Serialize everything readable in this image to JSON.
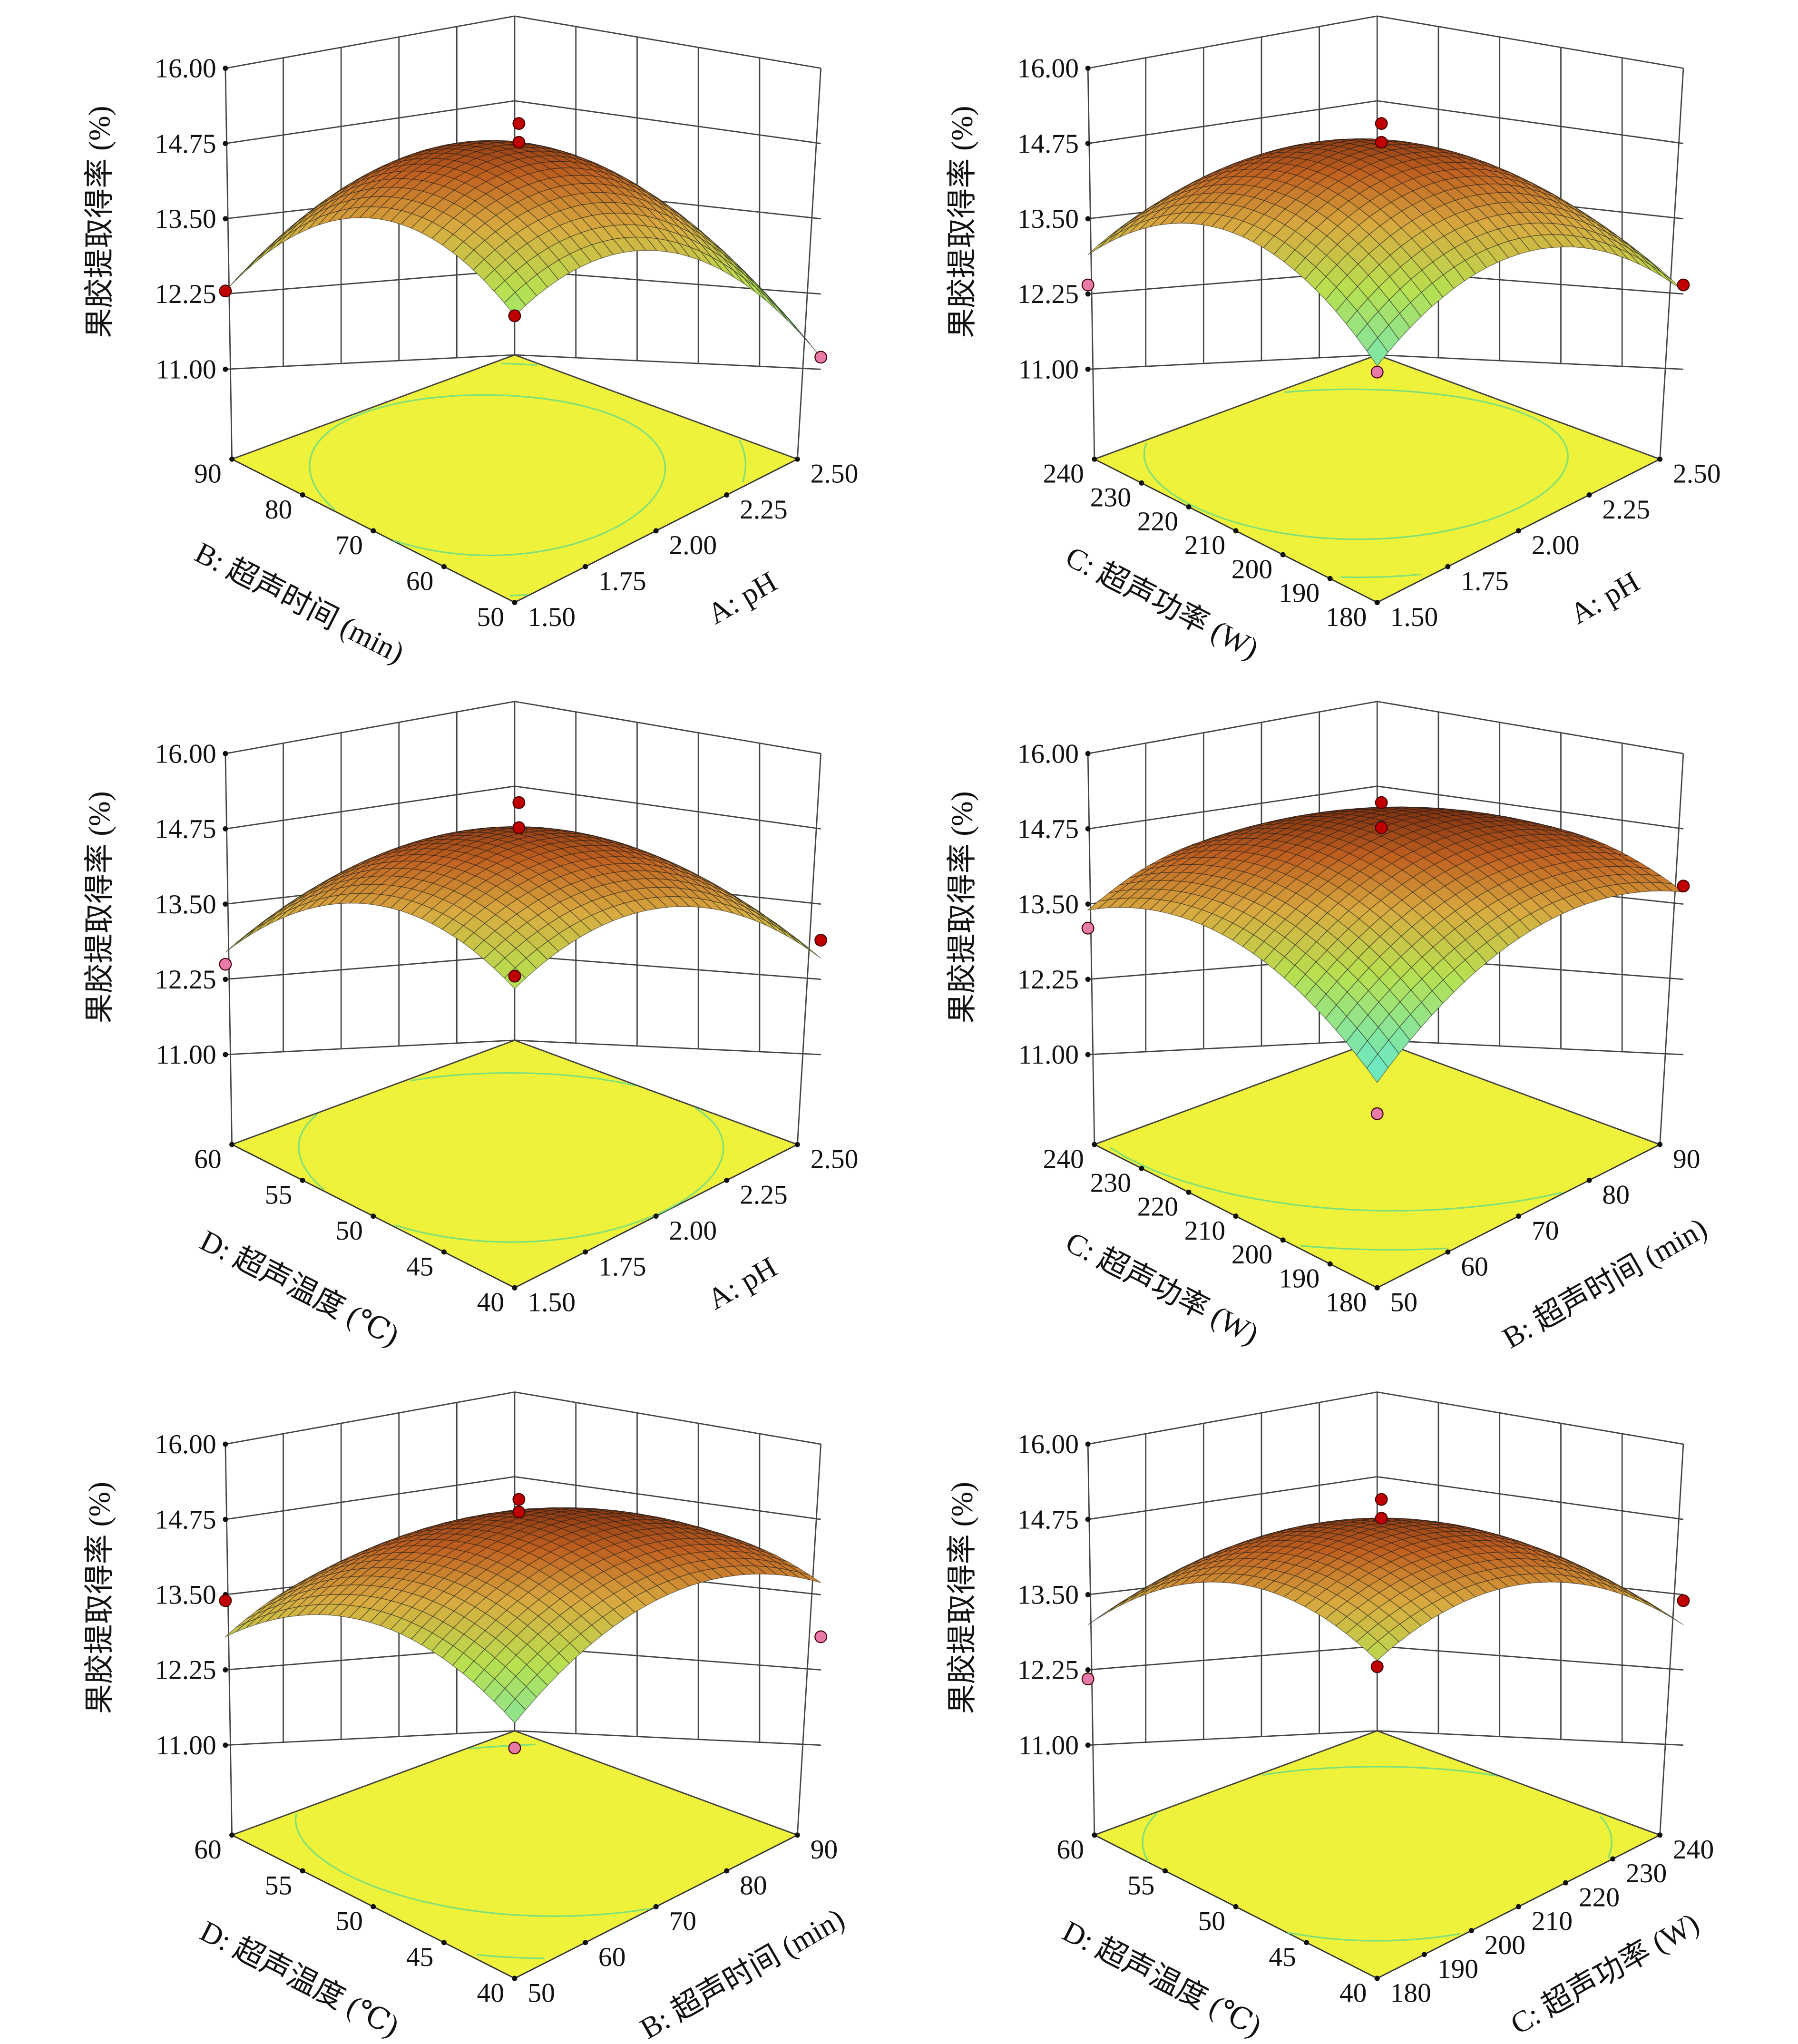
{
  "chart_data": {
    "type": "surface3d",
    "zlabel": "果胶提取得率 (%)",
    "zticks": [
      "11.00",
      "12.25",
      "13.50",
      "14.75",
      "16.00"
    ],
    "zlim": [
      11,
      16
    ],
    "colors": {
      "floor": "#eef23a",
      "contour": "#7fe07a",
      "point_above": "#c00000",
      "point_below": "#e87aa8"
    },
    "panels": [
      {
        "right": {
          "label": "A: pH",
          "ticks": [
            "1.50",
            "1.75",
            "2.00",
            "2.25",
            "2.50"
          ],
          "range": [
            1.5,
            2.5
          ]
        },
        "left": {
          "label": "B: 超声时间 (min)",
          "ticks": [
            "50",
            "60",
            "70",
            "80",
            "90"
          ],
          "range": [
            50,
            90
          ]
        },
        "surface": {
          "center": 14.6,
          "front": 12.0,
          "left": 12.3,
          "right": 11.2,
          "back": 11.8
        },
        "points": [
          {
            "r": 2.0,
            "l": 70,
            "z": 14.9,
            "pos": "above"
          },
          {
            "r": 2.0,
            "l": 70,
            "z": 14.6,
            "pos": "above"
          },
          {
            "r": 1.5,
            "l": 50,
            "z": 12.0,
            "pos": "above"
          },
          {
            "r": 1.5,
            "l": 90,
            "z": 12.3,
            "pos": "above"
          },
          {
            "r": 2.5,
            "l": 50,
            "z": 11.2,
            "pos": "below"
          }
        ]
      },
      {
        "right": {
          "label": "A: pH",
          "ticks": [
            "1.50",
            "1.75",
            "2.00",
            "2.25",
            "2.50"
          ],
          "range": [
            1.5,
            2.5
          ]
        },
        "left": {
          "label": "C: 超声功率 (W)",
          "ticks": [
            "180",
            "190",
            "200",
            "210",
            "220",
            "230",
            "240"
          ],
          "range": [
            180,
            240
          ]
        },
        "surface": {
          "center": 14.6,
          "front": 11.2,
          "left": 12.9,
          "right": 12.3,
          "back": 12.0
        },
        "points": [
          {
            "r": 2.0,
            "l": 210,
            "z": 14.9,
            "pos": "above"
          },
          {
            "r": 2.0,
            "l": 210,
            "z": 14.6,
            "pos": "above"
          },
          {
            "r": 1.5,
            "l": 240,
            "z": 12.4,
            "pos": "below"
          },
          {
            "r": 2.5,
            "l": 180,
            "z": 12.4,
            "pos": "above"
          },
          {
            "r": 1.5,
            "l": 180,
            "z": 11.1,
            "pos": "below"
          }
        ]
      },
      {
        "right": {
          "label": "A: pH",
          "ticks": [
            "1.50",
            "1.75",
            "2.00",
            "2.25",
            "2.50"
          ],
          "range": [
            1.5,
            2.5
          ]
        },
        "left": {
          "label": "D: 超声温度 (℃)",
          "ticks": [
            "40",
            "45",
            "50",
            "55",
            "60"
          ],
          "range": [
            40,
            60
          ]
        },
        "surface": {
          "center": 14.6,
          "front": 12.2,
          "left": 12.7,
          "right": 12.6,
          "back": 12.3
        },
        "points": [
          {
            "r": 2.0,
            "l": 50,
            "z": 15.0,
            "pos": "above"
          },
          {
            "r": 2.0,
            "l": 50,
            "z": 14.6,
            "pos": "above"
          },
          {
            "r": 1.5,
            "l": 60,
            "z": 12.5,
            "pos": "below"
          },
          {
            "r": 2.5,
            "l": 40,
            "z": 12.9,
            "pos": "above"
          },
          {
            "r": 1.5,
            "l": 40,
            "z": 12.4,
            "pos": "above"
          }
        ]
      },
      {
        "right": {
          "label": "B: 超声时间 (min)",
          "ticks": [
            "50",
            "60",
            "70",
            "80",
            "90"
          ],
          "range": [
            50,
            90
          ]
        },
        "left": {
          "label": "C: 超声功率 (W)",
          "ticks": [
            "180",
            "190",
            "200",
            "210",
            "220",
            "230",
            "240"
          ],
          "range": [
            180,
            240
          ]
        },
        "surface": {
          "center": 14.6,
          "front": 10.7,
          "left": 13.4,
          "right": 13.7,
          "back": 13.5
        },
        "points": [
          {
            "r": 70,
            "l": 210,
            "z": 15.0,
            "pos": "above"
          },
          {
            "r": 70,
            "l": 210,
            "z": 14.6,
            "pos": "above"
          },
          {
            "r": 50,
            "l": 240,
            "z": 13.1,
            "pos": "below"
          },
          {
            "r": 90,
            "l": 180,
            "z": 13.8,
            "pos": "above"
          },
          {
            "r": 50,
            "l": 180,
            "z": 10.2,
            "pos": "below"
          }
        ]
      },
      {
        "right": {
          "label": "B: 超声时间 (min)",
          "ticks": [
            "50",
            "60",
            "70",
            "80",
            "90"
          ],
          "range": [
            50,
            90
          ]
        },
        "left": {
          "label": "D: 超声温度 (℃)",
          "ticks": [
            "40",
            "45",
            "50",
            "55",
            "60"
          ],
          "range": [
            40,
            60
          ]
        },
        "surface": {
          "center": 14.6,
          "front": 11.5,
          "left": 12.8,
          "right": 13.7,
          "back": 13.0
        },
        "points": [
          {
            "r": 70,
            "l": 50,
            "z": 14.9,
            "pos": "above"
          },
          {
            "r": 70,
            "l": 50,
            "z": 14.7,
            "pos": "above"
          },
          {
            "r": 50,
            "l": 60,
            "z": 13.4,
            "pos": "above"
          },
          {
            "r": 90,
            "l": 40,
            "z": 12.8,
            "pos": "below"
          },
          {
            "r": 50,
            "l": 40,
            "z": 11.1,
            "pos": "below"
          }
        ]
      },
      {
        "right": {
          "label": "C: 超声功率 (W)",
          "ticks": [
            "180",
            "190",
            "200",
            "210",
            "220",
            "230",
            "240"
          ],
          "range": [
            180,
            240
          ]
        },
        "left": {
          "label": "D: 超声温度 (℃)",
          "ticks": [
            "40",
            "45",
            "50",
            "55",
            "60"
          ],
          "range": [
            40,
            60
          ]
        },
        "surface": {
          "center": 14.6,
          "front": 12.5,
          "left": 13.0,
          "right": 13.0,
          "back": 12.2
        },
        "points": [
          {
            "r": 210,
            "l": 50,
            "z": 14.9,
            "pos": "above"
          },
          {
            "r": 210,
            "l": 50,
            "z": 14.6,
            "pos": "above"
          },
          {
            "r": 180,
            "l": 60,
            "z": 12.1,
            "pos": "below"
          },
          {
            "r": 240,
            "l": 40,
            "z": 13.4,
            "pos": "above"
          },
          {
            "r": 180,
            "l": 40,
            "z": 12.4,
            "pos": "above"
          }
        ]
      }
    ]
  }
}
